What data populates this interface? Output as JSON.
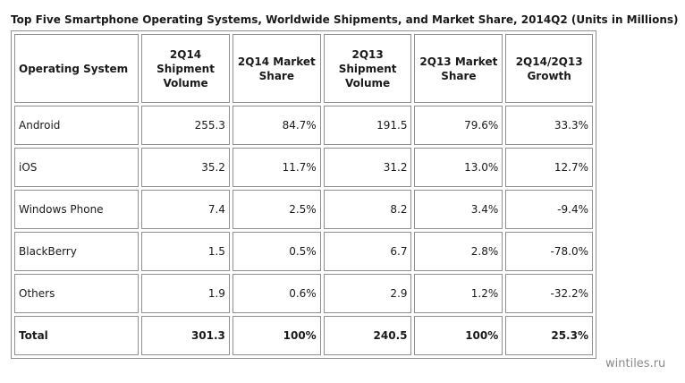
{
  "title": "Top Five Smartphone Operating Systems, Worldwide Shipments, and Market Share, 2014Q2 (Units in Millions)",
  "table": {
    "headers": [
      {
        "line1": "Operating System",
        "line2": "",
        "line3": ""
      },
      {
        "line1": "2Q14",
        "line2": "Shipment",
        "line3": "Volume"
      },
      {
        "line1": "2Q14 Market",
        "line2": "Share",
        "line3": ""
      },
      {
        "line1": "2Q13",
        "line2": "Shipment",
        "line3": "Volume"
      },
      {
        "line1": "2Q13 Market",
        "line2": "Share",
        "line3": ""
      },
      {
        "line1": "2Q14/2Q13",
        "line2": "Growth",
        "line3": ""
      }
    ],
    "rows": [
      {
        "name": "Android",
        "ship_2q14": "255.3",
        "share_2q14": "84.7%",
        "ship_2q13": "191.5",
        "share_2q13": "79.6%",
        "growth": "33.3%"
      },
      {
        "name": "iOS",
        "ship_2q14": "35.2",
        "share_2q14": "11.7%",
        "ship_2q13": "31.2",
        "share_2q13": "13.0%",
        "growth": "12.7%"
      },
      {
        "name": "Windows Phone",
        "ship_2q14": "7.4",
        "share_2q14": "2.5%",
        "ship_2q13": "8.2",
        "share_2q13": "3.4%",
        "growth": "-9.4%"
      },
      {
        "name": "BlackBerry",
        "ship_2q14": "1.5",
        "share_2q14": "0.5%",
        "ship_2q13": "6.7",
        "share_2q13": "2.8%",
        "growth": "-78.0%"
      },
      {
        "name": "Others",
        "ship_2q14": "1.9",
        "share_2q14": "0.6%",
        "ship_2q13": "2.9",
        "share_2q13": "1.2%",
        "growth": "-32.2%"
      }
    ],
    "total": {
      "name": "Total",
      "ship_2q14": "301.3",
      "share_2q14": "100%",
      "ship_2q13": "240.5",
      "share_2q13": "100%",
      "growth": "25.3%"
    }
  },
  "watermark": "wintiles.ru"
}
